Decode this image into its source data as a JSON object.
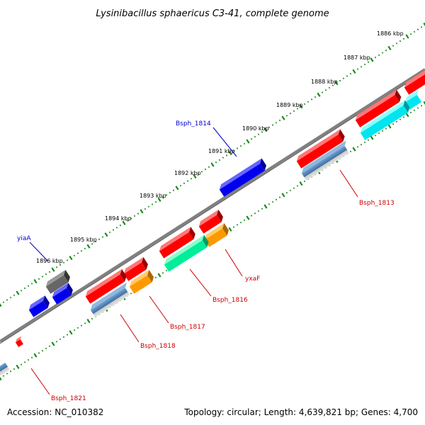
{
  "title": "Lysinibacillus sphaericus C3-41, complete genome",
  "kbp_ticks": [
    "1886 kbp",
    "1887 kbp",
    "1888 kbp",
    "1889 kbp",
    "1890 kbp",
    "1891 kbp",
    "1892 kbp",
    "1893 kbp",
    "1894 kbp",
    "1895 kbp",
    "1896 kbp"
  ],
  "gene_labels": {
    "bsph_1814": "Bsph_1814",
    "yiaA": "yiaA",
    "bsph_1813": "Bsph_1813",
    "yxaF": "yxaF",
    "bsph_1816": "Bsph_1816",
    "bsph_1817": "Bsph_1817",
    "bsph_1818": "Bsph_1818",
    "bsph_1821": "Bsph_1821"
  },
  "footer": {
    "accession": "Accession: NC_010382",
    "summary": "Topology: circular; Length: 4,639,821 bp; Genes: 4,700"
  },
  "colors": {
    "backbone": "#808080",
    "tick_green": "#1a8a1a",
    "red": "#ff0000",
    "blue": "#0000ee",
    "cyan": "#00e5ee",
    "steel": "#4f7fb0",
    "orange": "#ff9900",
    "spring": "#00ee99",
    "gray": "#666666",
    "label_blue": "#0000cc",
    "label_red": "#cc0000"
  }
}
